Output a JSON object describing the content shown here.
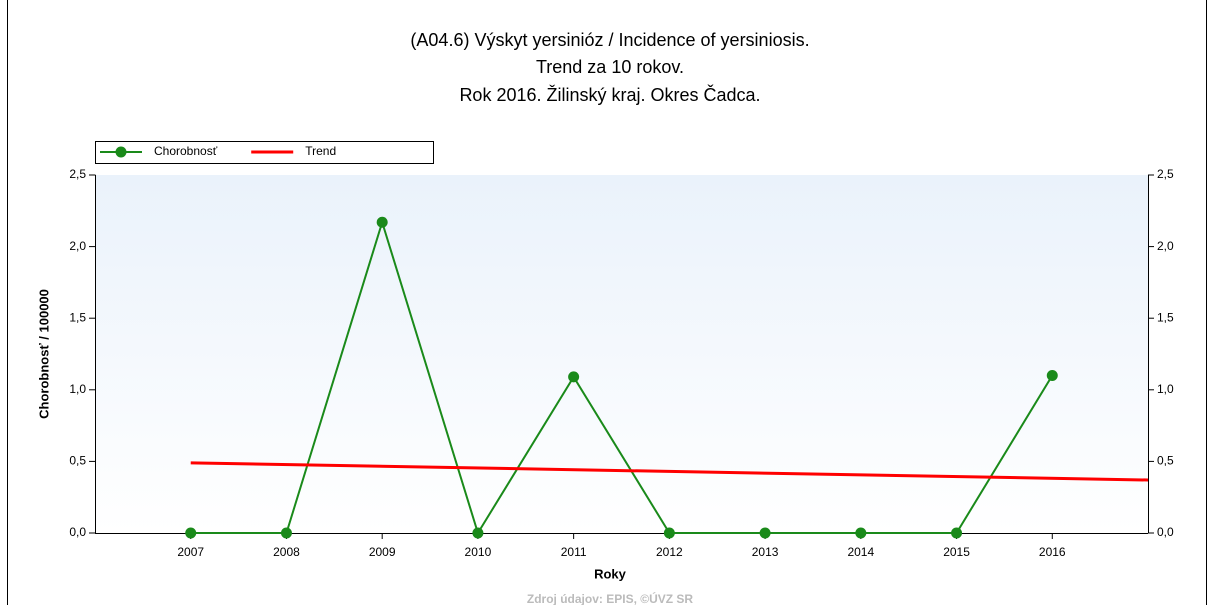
{
  "chart_data": {
    "type": "line",
    "title": [
      "(A04.6) Výskyt yersinióz / Incidence of yersiniosis.",
      "Trend za 10 rokov.",
      "Rok 2016. Žilinský kraj. Okres Čadca."
    ],
    "x_label": "Roky",
    "y_label": "Chorobnosť / 100000",
    "source": "Zdroj údajov: EPIS, ©ÚVZ SR",
    "x": [
      2007,
      2008,
      2009,
      2010,
      2011,
      2012,
      2013,
      2014,
      2015,
      2016
    ],
    "xlim": [
      2006,
      2017
    ],
    "xticks": [
      2007,
      2008,
      2009,
      2010,
      2011,
      2012,
      2013,
      2014,
      2015,
      2016
    ],
    "ylim": [
      0,
      2.5
    ],
    "yticks": [
      {
        "value": 0,
        "label": "0,0"
      },
      {
        "value": 0.5,
        "label": "0,5"
      },
      {
        "value": 1,
        "label": "1,0"
      },
      {
        "value": 1.5,
        "label": "1,5"
      },
      {
        "value": 2,
        "label": "2,0"
      },
      {
        "value": 2.5,
        "label": "2,5"
      }
    ],
    "legend": "top-left",
    "series": [
      {
        "name": "Chorobnosť",
        "color": "#1a8a1a",
        "markers": true,
        "values": [
          0,
          0,
          2.17,
          0,
          1.09,
          0,
          0,
          0,
          0,
          1.1
        ]
      },
      {
        "name": "Trend",
        "color": "#ff0000",
        "markers": false,
        "x": [
          2007,
          2017
        ],
        "values": [
          0.49,
          0.37
        ]
      }
    ]
  }
}
